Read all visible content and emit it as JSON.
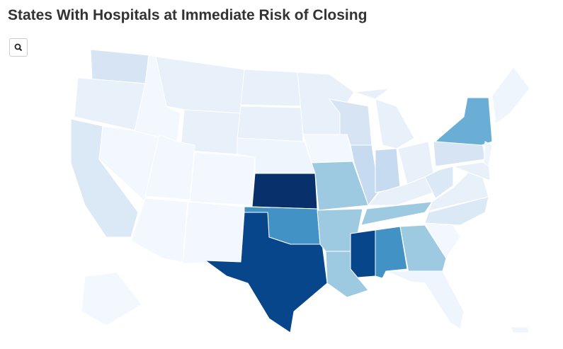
{
  "title": "States With Hospitals at Immediate Risk of Closing"
}
